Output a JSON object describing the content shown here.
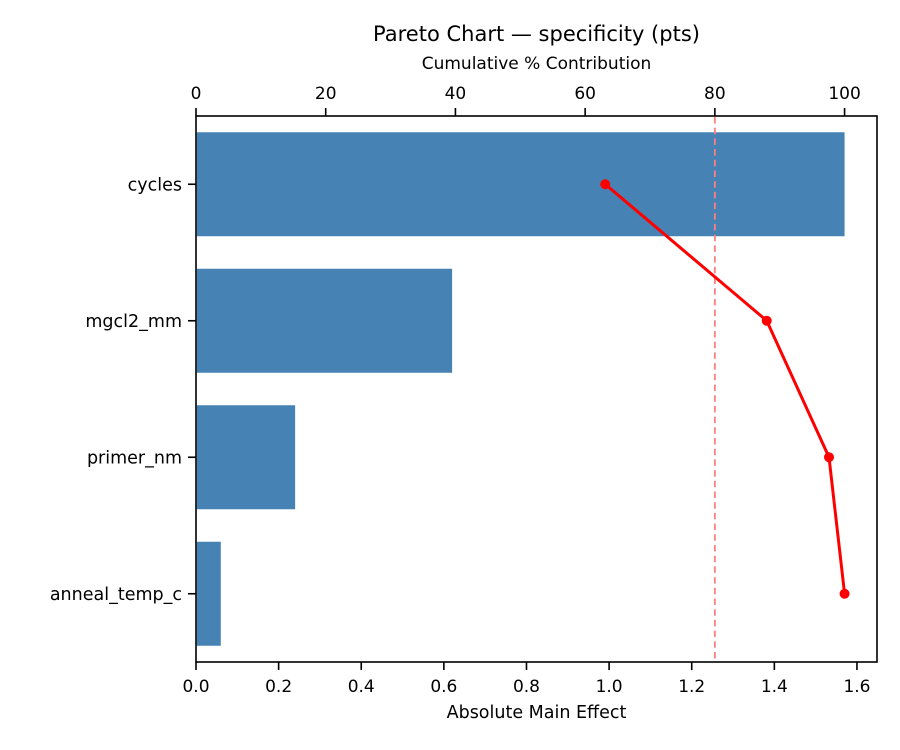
{
  "chart_data": {
    "type": "bar",
    "orientation": "horizontal",
    "title": "Pareto Chart — specificity (pts)",
    "top_axis_label": "Cumulative % Contribution",
    "xlabel": "Absolute Main Effect",
    "categories": [
      "cycles",
      "mgcl2_mm",
      "primer_nm",
      "anneal_temp_c"
    ],
    "values": [
      1.57,
      0.62,
      0.24,
      0.06
    ],
    "cumulative_pct": [
      63.1,
      88.0,
      97.6,
      100.0
    ],
    "threshold_pct": 80,
    "bottom_axis": {
      "ticks": [
        0.0,
        0.2,
        0.4,
        0.6,
        0.8,
        1.0,
        1.2,
        1.4,
        1.6
      ],
      "range": [
        0,
        1.6485
      ]
    },
    "top_axis": {
      "ticks": [
        0,
        20,
        40,
        60,
        80,
        100
      ],
      "range": [
        0,
        105
      ]
    },
    "grid": false,
    "legend": false,
    "colors": {
      "bar": "#4682b4",
      "line": "#ff0000",
      "threshold": "#fa8080",
      "text": "#000000",
      "axis": "#000000",
      "background": "#ffffff"
    }
  }
}
